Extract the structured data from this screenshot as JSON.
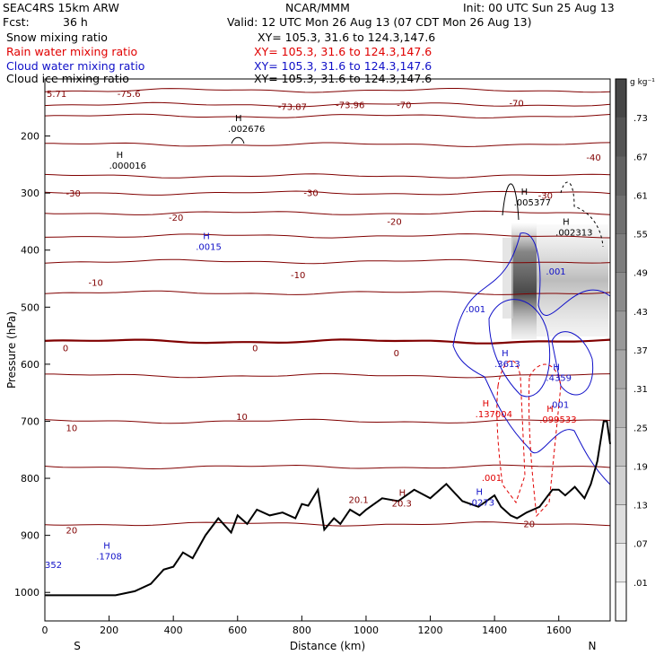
{
  "header": {
    "model": "SEAC4RS 15km ARW",
    "org": "NCAR/MMM",
    "init": "Init: 00 UTC Sun 25 Aug 13",
    "fcst_label": "Fcst:",
    "fcst_value": "36 h",
    "valid": "Valid: 12 UTC Mon 26 Aug 13 (07 CDT Mon 26 Aug 13)"
  },
  "fields": [
    {
      "label": "Snow mixing ratio",
      "xy": "XY= 105.3, 31.6 to 124.3,147.6",
      "color": "#000000"
    },
    {
      "label": "Rain water mixing ratio",
      "xy": "XY= 105.3, 31.6 to 124.3,147.6",
      "color": "#e00000"
    },
    {
      "label": "Cloud water mixing ratio",
      "xy": "XY= 105.3, 31.6 to 124.3,147.6",
      "color": "#1010c8"
    },
    {
      "label": "Cloud ice mixing ratio",
      "xy": "XY= 105.3, 31.6 to 124.3,147.6",
      "color": "#000000"
    }
  ],
  "chart_data": {
    "type": "heatmap",
    "xlabel": "Distance (km)",
    "ylabel": "Pressure (hPa)",
    "x_ticks": [
      "0",
      "200",
      "400",
      "600",
      "800",
      "1000",
      "1200",
      "1400",
      "1600"
    ],
    "y_ticks": [
      "200",
      "300",
      "400",
      "500",
      "600",
      "700",
      "800",
      "900",
      "1000"
    ],
    "xlim": [
      0,
      1760
    ],
    "ylim": [
      1050,
      100
    ],
    "direction_left": "S",
    "direction_right": "N",
    "colorbar": {
      "unit": "g kg⁻¹",
      "labels": [
        ".73",
        ".67",
        ".61",
        ".55",
        ".49",
        ".43",
        ".37",
        ".31",
        ".25",
        ".19",
        ".13",
        ".07",
        ".01"
      ]
    },
    "temperature_contours": {
      "color": "#800000",
      "levels": [
        {
          "t": -70,
          "p": 120
        },
        {
          "t": -60,
          "p": 145
        },
        {
          "t": -50,
          "p": 165
        },
        {
          "t": -40,
          "p": 215
        },
        {
          "t": -30,
          "p": 270
        },
        {
          "t": -25,
          "p": 300
        },
        {
          "t": -20,
          "p": 335
        },
        {
          "t": -15,
          "p": 375
        },
        {
          "t": -10,
          "p": 420
        },
        {
          "t": -5,
          "p": 475
        },
        {
          "t": 0,
          "p": 560
        },
        {
          "t": 5,
          "p": 620
        },
        {
          "t": 10,
          "p": 700
        },
        {
          "t": 15,
          "p": 780
        },
        {
          "t": 20,
          "p": 880
        }
      ],
      "labels": [
        {
          "text": "5.71",
          "x": 0,
          "p": 125
        },
        {
          "text": "-75.6",
          "x": 220,
          "p": 125
        },
        {
          "text": "-73.87",
          "x": 720,
          "p": 148
        },
        {
          "text": "-73.96",
          "x": 900,
          "p": 145
        },
        {
          "text": "-70",
          "x": 1090,
          "p": 145
        },
        {
          "text": "-70",
          "x": 1440,
          "p": 142
        },
        {
          "text": "-40",
          "x": 1680,
          "p": 237
        },
        {
          "text": "-30",
          "x": 60,
          "p": 300
        },
        {
          "text": "-30",
          "x": 800,
          "p": 299
        },
        {
          "text": "-30",
          "x": 1530,
          "p": 304
        },
        {
          "text": "-20",
          "x": 380,
          "p": 342
        },
        {
          "text": "-20",
          "x": 1060,
          "p": 349
        },
        {
          "text": "-10",
          "x": 130,
          "p": 456
        },
        {
          "text": "-10",
          "x": 760,
          "p": 443
        },
        {
          "text": "0",
          "x": 50,
          "p": 571
        },
        {
          "text": "0",
          "x": 640,
          "p": 571
        },
        {
          "text": "0",
          "x": 1080,
          "p": 580
        },
        {
          "text": "10",
          "x": 60,
          "p": 711
        },
        {
          "text": "10",
          "x": 590,
          "p": 691
        },
        {
          "text": "20",
          "x": 60,
          "p": 890
        },
        {
          "text": "20.1",
          "x": 940,
          "p": 837
        }
      ]
    },
    "terrain": {
      "color": "#000000",
      "x": [
        0,
        60,
        120,
        180,
        220,
        280,
        330,
        370,
        400,
        430,
        460,
        500,
        540,
        580,
        600,
        630,
        660,
        700,
        740,
        780,
        800,
        820,
        850,
        870,
        900,
        920,
        950,
        980,
        1000,
        1050,
        1100,
        1150,
        1200,
        1250,
        1300,
        1350,
        1400,
        1420,
        1450,
        1470,
        1500,
        1520,
        1540,
        1560,
        1580,
        1600,
        1620,
        1650,
        1680,
        1700,
        1720,
        1740,
        1750,
        1760
      ],
      "p": [
        1005,
        1005,
        1005,
        1005,
        1005,
        998,
        985,
        960,
        955,
        930,
        940,
        900,
        870,
        895,
        865,
        880,
        855,
        865,
        860,
        870,
        845,
        848,
        820,
        890,
        870,
        880,
        855,
        865,
        855,
        835,
        840,
        820,
        835,
        810,
        840,
        850,
        830,
        850,
        865,
        870,
        860,
        855,
        850,
        835,
        820,
        820,
        830,
        815,
        835,
        810,
        770,
        700,
        700,
        740
      ]
    },
    "extrema": [
      {
        "label": "H",
        "value": ".002676",
        "x": 570,
        "p": 180,
        "color": "#000000"
      },
      {
        "label": "H",
        "value": ".000016",
        "x": 200,
        "p": 245,
        "color": "#000000"
      },
      {
        "label": "H",
        "value": ".005377",
        "x": 1460,
        "p": 309,
        "color": "#000000"
      },
      {
        "label": "H",
        "value": ".002313",
        "x": 1590,
        "p": 362,
        "color": "#000000"
      },
      {
        "label": "H",
        "value": ".0015",
        "x": 470,
        "p": 387,
        "color": "#1010c8"
      },
      {
        "label": "",
        "value": ".001",
        "x": 1310,
        "p": 496,
        "color": "#1010c8"
      },
      {
        "label": "",
        "value": ".001",
        "x": 1560,
        "p": 430,
        "color": "#1010c8"
      },
      {
        "label": "H",
        "value": ".3613",
        "x": 1400,
        "p": 592,
        "color": "#1010c8"
      },
      {
        "label": "H",
        "value": ".4359",
        "x": 1560,
        "p": 617,
        "color": "#1010c8"
      },
      {
        "label": "",
        "value": ".001",
        "x": 1570,
        "p": 664,
        "color": "#1010c8"
      },
      {
        "label": "H",
        "value": ".137004",
        "x": 1340,
        "p": 680,
        "color": "#e00000"
      },
      {
        "label": "H",
        "value": ".099533",
        "x": 1540,
        "p": 690,
        "color": "#e00000"
      },
      {
        "label": "",
        "value": ".001",
        "x": 1360,
        "p": 792,
        "color": "#e00000"
      },
      {
        "label": "H",
        "value": "20.3",
        "x": 1080,
        "p": 837,
        "color": "#800000"
      },
      {
        "label": "H",
        "value": ".0273",
        "x": 1320,
        "p": 835,
        "color": "#1010c8"
      },
      {
        "label": "",
        "value": "20",
        "x": 1490,
        "p": 873,
        "color": "#800000"
      },
      {
        "label": "H",
        "value": ".1708",
        "x": 160,
        "p": 930,
        "color": "#1010c8"
      },
      {
        "label": "",
        "value": "352",
        "x": 0,
        "p": 945,
        "color": "#1010c8"
      }
    ]
  }
}
